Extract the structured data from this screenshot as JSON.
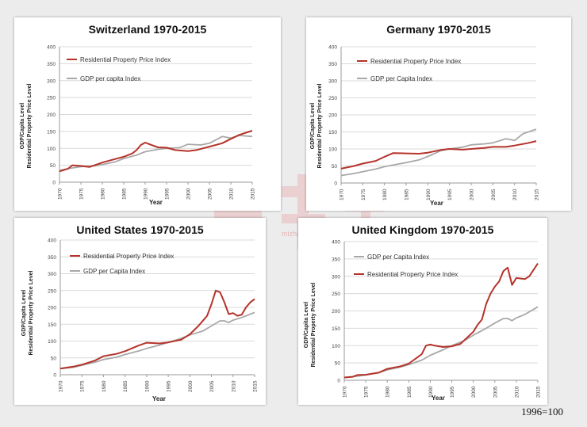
{
  "watermark": {
    "text": "mizhai.com"
  },
  "footnote": "1996=100",
  "colors": {
    "property": "#b5332b",
    "gdp": "#a8a8a8",
    "grid": "#d9d9d9",
    "axis": "#9a9a9a"
  },
  "panels": [
    {
      "title": "Switzerland 1970-2015",
      "legend": [
        "Residential Property Price Index",
        "GDP per capita Index"
      ],
      "legend_order": [
        "property",
        "gdp"
      ],
      "ylabel_lines": [
        "GDP/Capita Level",
        "Residential Property Price Level"
      ],
      "xlabel": "Year",
      "yticks": [
        "0",
        "50",
        "100",
        "150",
        "200",
        "250",
        "300",
        "350",
        "400"
      ],
      "xticks": [
        "1970",
        "1975",
        "1980",
        "1985",
        "1990",
        "1995",
        "2000",
        "2005",
        "2010",
        "2015"
      ]
    },
    {
      "title": "Germany 1970-2015",
      "legend": [
        "Residential Property Price Index",
        "GDP per Capita Index"
      ],
      "legend_order": [
        "property",
        "gdp"
      ],
      "ylabel_lines": [
        "GDP/Capita Level",
        "Residential Property Price Level"
      ],
      "xlabel": "Year",
      "yticks": [
        "0",
        "50",
        "100",
        "150",
        "200",
        "250",
        "300",
        "350",
        "400"
      ],
      "xticks": [
        "1970",
        "1975",
        "1980",
        "1985",
        "1990",
        "1995",
        "2000",
        "2005",
        "2010",
        "2015"
      ]
    },
    {
      "title": "United States 1970-2015",
      "legend": [
        "Residential Property Price Index",
        "GDP per Capita Index"
      ],
      "legend_order": [
        "property",
        "gdp"
      ],
      "ylabel_lines": [
        "GDP/Capita Level",
        "Residential Property Price Level"
      ],
      "xlabel": "Year",
      "yticks": [
        "0",
        "50",
        "100",
        "150",
        "200",
        "250",
        "300",
        "350",
        "400"
      ],
      "xticks": [
        "1970",
        "1975",
        "1980",
        "1985",
        "1990",
        "1995",
        "2000",
        "2005",
        "2010",
        "2015"
      ]
    },
    {
      "title": "United Kingdom 1970-2015",
      "legend": [
        "GDP per Capita Index",
        "Residential Property Price Index"
      ],
      "legend_order": [
        "gdp",
        "property"
      ],
      "ylabel_lines": [
        "GDP/Capita Level",
        "Residential Property Price Level"
      ],
      "xlabel": "Year",
      "yticks": [
        "0",
        "50",
        "100",
        "150",
        "200",
        "250",
        "300",
        "350",
        "400"
      ],
      "xticks": [
        "1970",
        "1975",
        "1980",
        "1985",
        "1990",
        "1995",
        "2000",
        "2005",
        "2010",
        "2015"
      ]
    }
  ],
  "chart_data": [
    {
      "type": "line",
      "title": "Switzerland 1970-2015",
      "xlabel": "Year",
      "ylabel": "GDP/Capita Level / Residential Property Price Level",
      "xlim": [
        1970,
        2015
      ],
      "ylim": [
        0,
        400
      ],
      "grid": true,
      "legend": "top-left",
      "series": [
        {
          "name": "Residential Property Price Index",
          "x": [
            1970,
            1972,
            1973,
            1975,
            1977,
            1980,
            1982,
            1985,
            1987,
            1988,
            1989,
            1990,
            1991,
            1993,
            1995,
            1997,
            2000,
            2002,
            2005,
            2008,
            2010,
            2012,
            2015
          ],
          "y": [
            32,
            40,
            50,
            48,
            45,
            58,
            65,
            75,
            85,
            95,
            110,
            117,
            112,
            103,
            102,
            95,
            92,
            95,
            105,
            115,
            128,
            140,
            152
          ]
        },
        {
          "name": "GDP per capita Index",
          "x": [
            1970,
            1973,
            1975,
            1978,
            1980,
            1983,
            1985,
            1988,
            1990,
            1993,
            1995,
            1998,
            2000,
            2003,
            2005,
            2008,
            2010,
            2012,
            2015
          ],
          "y": [
            35,
            42,
            46,
            48,
            52,
            60,
            70,
            80,
            90,
            97,
            100,
            102,
            112,
            110,
            115,
            135,
            130,
            138,
            135
          ]
        }
      ]
    },
    {
      "type": "line",
      "title": "Germany 1970-2015",
      "xlabel": "Year",
      "ylabel": "GDP/Capita Level / Residential Property Price Level",
      "xlim": [
        1970,
        2015
      ],
      "ylim": [
        0,
        400
      ],
      "grid": true,
      "legend": "top-left",
      "series": [
        {
          "name": "Residential Property Price Index",
          "x": [
            1970,
            1973,
            1975,
            1978,
            1980,
            1982,
            1985,
            1988,
            1990,
            1993,
            1995,
            1998,
            2000,
            2003,
            2005,
            2008,
            2010,
            2013,
            2015
          ],
          "y": [
            42,
            50,
            57,
            65,
            77,
            88,
            87,
            86,
            89,
            97,
            100,
            98,
            100,
            103,
            106,
            106,
            110,
            117,
            123
          ]
        },
        {
          "name": "GDP per Capita Index",
          "x": [
            1970,
            1973,
            1975,
            1978,
            1980,
            1983,
            1985,
            1988,
            1990,
            1993,
            1995,
            1998,
            2000,
            2003,
            2005,
            2008,
            2010,
            2012,
            2015
          ],
          "y": [
            22,
            28,
            33,
            41,
            48,
            55,
            60,
            68,
            78,
            95,
            100,
            105,
            112,
            115,
            118,
            130,
            125,
            145,
            158
          ]
        }
      ]
    },
    {
      "type": "line",
      "title": "United States 1970-2015",
      "xlabel": "Year",
      "ylabel": "GDP/Capita Level / Residential Property Price Level",
      "xlim": [
        1970,
        2015
      ],
      "ylim": [
        0,
        400
      ],
      "grid": true,
      "legend": "top-left",
      "series": [
        {
          "name": "Residential Property Price Index",
          "x": [
            1970,
            1973,
            1975,
            1978,
            1980,
            1983,
            1985,
            1988,
            1990,
            1993,
            1995,
            1998,
            2000,
            2002,
            2004,
            2005,
            2006,
            2007,
            2008,
            2009,
            2010,
            2011,
            2012,
            2013,
            2014,
            2015
          ],
          "y": [
            18,
            24,
            30,
            42,
            55,
            62,
            70,
            86,
            95,
            93,
            96,
            104,
            120,
            145,
            175,
            210,
            250,
            245,
            215,
            180,
            183,
            175,
            178,
            200,
            215,
            225
          ]
        },
        {
          "name": "GDP per Capita Index",
          "x": [
            1970,
            1973,
            1975,
            1978,
            1980,
            1983,
            1985,
            1988,
            1990,
            1993,
            1995,
            1998,
            2000,
            2003,
            2005,
            2007,
            2008,
            2009,
            2010,
            2012,
            2015
          ],
          "y": [
            18,
            22,
            28,
            37,
            45,
            52,
            60,
            70,
            78,
            88,
            96,
            108,
            118,
            130,
            145,
            160,
            160,
            155,
            162,
            170,
            185
          ]
        }
      ]
    },
    {
      "type": "line",
      "title": "United Kingdom 1970-2015",
      "xlabel": "Year",
      "ylabel": "GDP/Capita Level / Residential Property Price Level",
      "xlim": [
        1970,
        2015
      ],
      "ylim": [
        0,
        400
      ],
      "grid": true,
      "legend": "top-left",
      "series": [
        {
          "name": "GDP per Capita Index",
          "x": [
            1970,
            1973,
            1975,
            1978,
            1980,
            1983,
            1985,
            1988,
            1990,
            1993,
            1995,
            1998,
            2000,
            2003,
            2005,
            2007,
            2008,
            2009,
            2010,
            2012,
            2015
          ],
          "y": [
            8,
            12,
            15,
            22,
            30,
            38,
            45,
            58,
            72,
            88,
            100,
            115,
            130,
            150,
            165,
            178,
            178,
            172,
            180,
            190,
            212
          ]
        },
        {
          "name": "Residential Property Price Index",
          "x": [
            1970,
            1972,
            1973,
            1975,
            1978,
            1980,
            1983,
            1985,
            1988,
            1989,
            1990,
            1991,
            1993,
            1995,
            1997,
            2000,
            2001,
            2002,
            2003,
            2004,
            2005,
            2006,
            2007,
            2008,
            2009,
            2010,
            2012,
            2013,
            2015
          ],
          "y": [
            8,
            10,
            15,
            16,
            22,
            33,
            40,
            48,
            75,
            100,
            103,
            100,
            96,
            98,
            105,
            140,
            160,
            175,
            220,
            250,
            270,
            285,
            315,
            325,
            275,
            295,
            292,
            300,
            337
          ]
        }
      ]
    }
  ]
}
